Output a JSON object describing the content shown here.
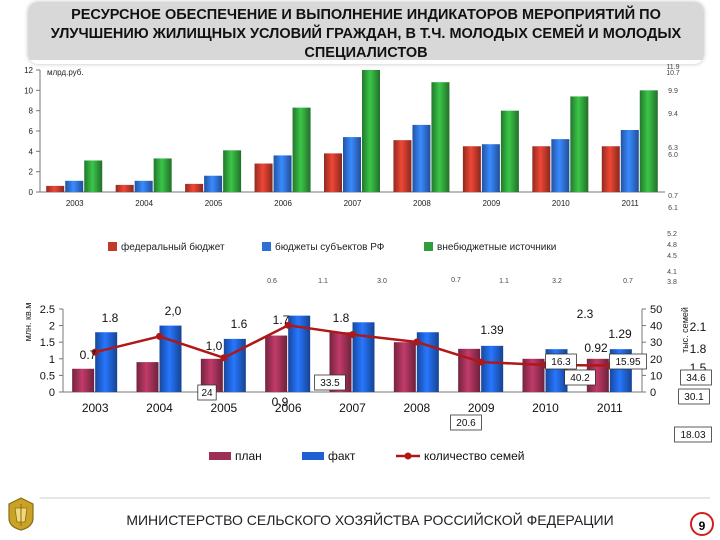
{
  "header": {
    "title": "РЕСУРСНОЕ ОБЕСПЕЧЕНИЕ И ВЫПОЛНЕНИЕ ИНДИКАТОРОВ МЕРОПРИЯТИЙ ПО УЛУЧШЕНИЮ ЖИЛИЩНЫХ УСЛОВИЙ ГРАЖДАН, В Т.Ч. МОЛОДЫХ СЕМЕЙ И МОЛОДЫХ СПЕЦИАЛИСТОВ"
  },
  "colors": {
    "federal": "#c0392b",
    "regional": "#2e6fd6",
    "extrabudget": "#2f9e3a",
    "plan": "#9b2f55",
    "fact": "#1f5fd0",
    "families_line": "#b01717",
    "title_bar": "#d8d8d8"
  },
  "chart_data": [
    {
      "type": "bar",
      "ylabel": "млрд.руб.",
      "ylim": [
        0,
        12
      ],
      "yticks": [
        "0",
        "2",
        "4",
        "6",
        "8",
        "10",
        "12"
      ],
      "categories": [
        "2003",
        "2004",
        "2005",
        "2006",
        "2007",
        "2008",
        "2009",
        "2010",
        "2011"
      ],
      "series": [
        {
          "name": "федеральный бюджет",
          "values": [
            0.6,
            0.7,
            0.8,
            2.8,
            3.8,
            5.1,
            4.5,
            4.5,
            4.5
          ]
        },
        {
          "name": "бюджеты субъектов РФ",
          "values": [
            1.1,
            1.1,
            1.6,
            3.6,
            5.4,
            6.6,
            4.7,
            5.2,
            6.1
          ]
        },
        {
          "name": "внебюджетные источники",
          "values": [
            3.1,
            3.3,
            4.1,
            8.3,
            12.0,
            10.8,
            8.0,
            9.4,
            10.0
          ]
        }
      ],
      "scatter_labels": [
        "11.9",
        "10.7",
        "9.9",
        "9.4",
        "6.3",
        "6.0",
        "0.7",
        "6.1",
        "5.2",
        "4.8",
        "4.5",
        "4.1",
        "3.8",
        "0.6",
        "1.1",
        "3.0",
        "0.7",
        "1.1",
        "3.2",
        "0.7"
      ],
      "legend": [
        "федеральный бюджет",
        "бюджеты субъектов РФ",
        "внебюджетные источники"
      ]
    },
    {
      "type": "bar+line",
      "ylabel_left": "млн. кв.м",
      "ylabel_right": "тыс. семей",
      "ylim_left": [
        0,
        2.5
      ],
      "ylim_right": [
        0,
        50
      ],
      "yticks_left": [
        "0",
        "0.5",
        "1",
        "1.5",
        "2",
        "2.5"
      ],
      "yticks_right": [
        "0",
        "10",
        "20",
        "30",
        "40",
        "50"
      ],
      "categories": [
        "2003",
        "2004",
        "2005",
        "2006",
        "2007",
        "2008",
        "2009",
        "2010",
        "2011"
      ],
      "series": [
        {
          "name": "план",
          "values": [
            0.7,
            0.9,
            1.0,
            1.7,
            1.8,
            1.5,
            1.3,
            1.0,
            1.0
          ]
        },
        {
          "name": "факт",
          "values": [
            1.8,
            2.0,
            1.6,
            2.3,
            2.1,
            1.8,
            1.39,
            1.29,
            1.29
          ]
        },
        {
          "name": "количество семей",
          "axis": "right",
          "values": [
            24,
            33.5,
            20.6,
            40.2,
            34.6,
            30.1,
            18.03,
            16.3,
            15.95
          ]
        }
      ],
      "annotations": [
        "1.8",
        "2,0",
        "1.6",
        "1.7",
        "1.8",
        "2.3",
        "1.39",
        "1.29",
        "0.92",
        "0.7",
        "1,0",
        "0.9",
        "2.1",
        "1.8",
        "1.5"
      ],
      "boxed_labels": [
        "33.5",
        "24",
        "16.3",
        "40.2",
        "15.95",
        "34.6",
        "30.1",
        "20.6",
        "18.03"
      ],
      "legend": [
        "план",
        "факт",
        "количество семей"
      ]
    }
  ],
  "footer": {
    "text": "МИНИСТЕРСТВО СЕЛЬСКОГО ХОЗЯЙСТВА РОССИЙСКОЙ ФЕДЕРАЦИИ",
    "page_number": "9",
    "logo_icon": "emblem-icon"
  }
}
